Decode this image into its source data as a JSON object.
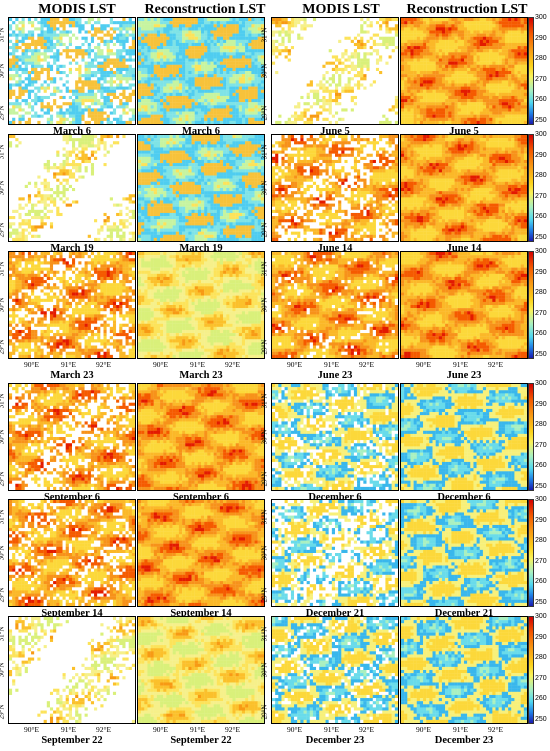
{
  "headers": [
    "MODIS LST",
    "Reconstruction LST",
    "MODIS LST",
    "Reconstruction LST"
  ],
  "captions": [
    [
      "March 6",
      "March 6",
      "June 5",
      "June 5"
    ],
    [
      "March 19",
      "March 19",
      "June 14",
      "June 14"
    ],
    [
      "March 23",
      "March 23",
      "June 23",
      "June 23"
    ],
    [
      "September 6",
      "September 6",
      "December 6",
      "December 6"
    ],
    [
      "September 14",
      "September 14",
      "December 21",
      "December 21"
    ],
    [
      "September 22",
      "September 22",
      "December 23",
      "December 23"
    ]
  ],
  "lat_labels": [
    "31°N",
    "30°N",
    "29°N"
  ],
  "lon_labels": [
    "90°E",
    "91°E",
    "92°E"
  ],
  "colorbar_ticks": [
    "300",
    "290",
    "280",
    "270",
    "260",
    "250"
  ],
  "colorbar_unit_range": [
    250,
    300
  ]
}
